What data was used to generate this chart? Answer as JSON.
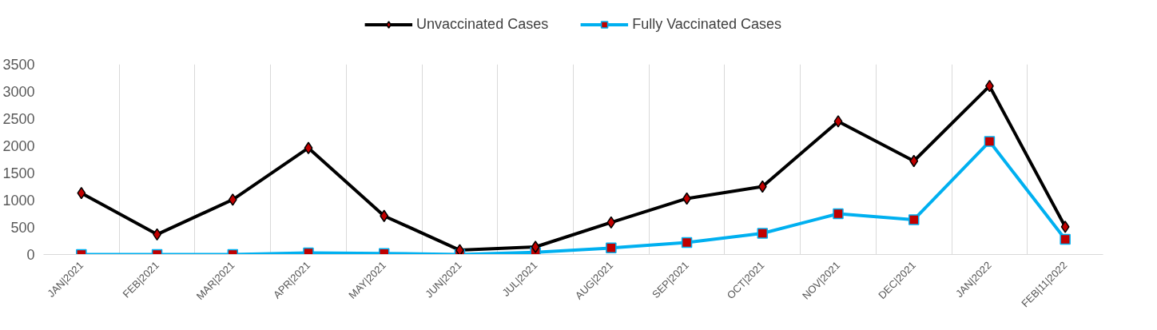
{
  "chart_data": {
    "type": "line",
    "categories": [
      "JAN|2021",
      "FEB|2021",
      "MAR|2021",
      "APR|2021",
      "MAY|2021",
      "JUN|2021",
      "JUL|2021",
      "AUG|2021",
      "SEP|2021",
      "OCT|2021",
      "NOV|2021",
      "DEC|2021",
      "JAN|2022",
      "FEB|11|2022"
    ],
    "series": [
      {
        "name": "Unvaccinated Cases",
        "color": "#000000",
        "marker": "diamond",
        "values": [
          1130,
          370,
          1010,
          1960,
          710,
          80,
          140,
          590,
          1030,
          1250,
          2450,
          1720,
          3100,
          510
        ]
      },
      {
        "name": "Fully Vaccinated Cases",
        "color": "#00b0f0",
        "marker": "square",
        "values": [
          0,
          0,
          0,
          30,
          20,
          0,
          40,
          120,
          220,
          390,
          750,
          640,
          2080,
          280
        ]
      }
    ],
    "ylim": [
      0,
      3500
    ],
    "yticks": [
      0,
      500,
      1000,
      1500,
      2000,
      2500,
      3000,
      3500
    ],
    "grid": "x",
    "legend": "top"
  }
}
